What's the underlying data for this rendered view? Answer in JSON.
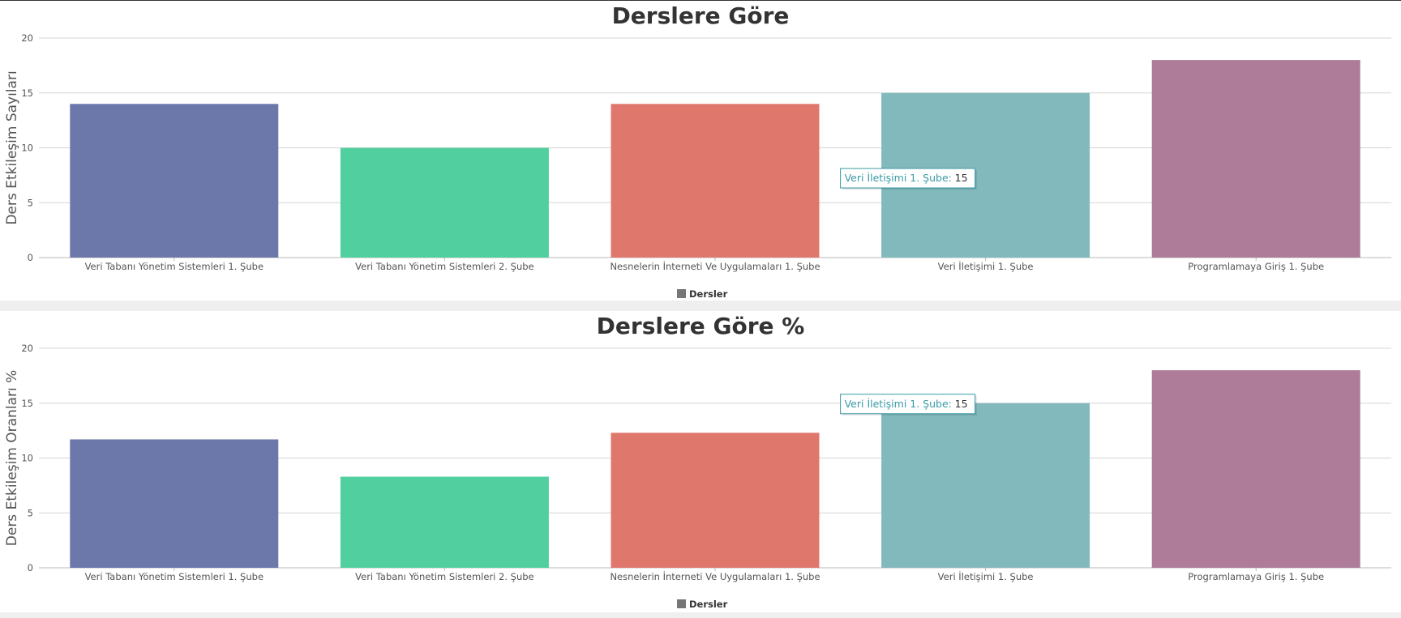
{
  "chart_data": [
    {
      "type": "bar",
      "title": "Derslere Göre",
      "ylabel": "Ders Etkileşim Sayıları",
      "xlabel": "",
      "categories": [
        "Veri Tabanı Yönetim Sistemleri 1. Şube",
        "Veri Tabanı Yönetim Sistemleri 2. Şube",
        "Nesnelerin İnterneti Ve Uygulamaları 1. Şube",
        "Veri İletişimi 1. Şube",
        "Programlamaya Giriş 1. Şube"
      ],
      "series": [
        {
          "name": "Dersler",
          "values": [
            14,
            10,
            14,
            15,
            18
          ]
        }
      ],
      "colors": [
        "#6c77aa",
        "#52cf9f",
        "#df776d",
        "#82b9bd",
        "#ae7c98"
      ],
      "ylim": [
        0,
        20
      ],
      "yticks": [
        "0",
        "5",
        "10",
        "15",
        "20"
      ],
      "grid": true,
      "legend_position": "bottom",
      "legend_color": "#777777",
      "tooltip": {
        "category": "Veri İletişimi 1. Şube",
        "label": "Veri İletişimi 1. Şube:",
        "value": "15",
        "color": "#3a9aa5"
      }
    },
    {
      "type": "bar",
      "title": "Derslere Göre %",
      "ylabel": "Ders Etkileşim Oranları %",
      "xlabel": "",
      "categories": [
        "Veri Tabanı Yönetim Sistemleri 1. Şube",
        "Veri Tabanı Yönetim Sistemleri 2. Şube",
        "Nesnelerin İnterneti Ve Uygulamaları 1. Şube",
        "Veri İletişimi 1. Şube",
        "Programlamaya Giriş 1. Şube"
      ],
      "series": [
        {
          "name": "Dersler",
          "values": [
            11.7,
            8.3,
            12.3,
            15,
            18
          ]
        }
      ],
      "colors": [
        "#6c77aa",
        "#52cf9f",
        "#df776d",
        "#82b9bd",
        "#ae7c98"
      ],
      "ylim": [
        0,
        20
      ],
      "yticks": [
        "0",
        "5",
        "10",
        "15",
        "20"
      ],
      "grid": true,
      "legend_position": "bottom",
      "legend_color": "#777777",
      "tooltip": {
        "category": "Veri İletişimi 1. Şube",
        "label": "Veri İletişimi 1. Şube:",
        "value": "15",
        "color": "#3a9aa5"
      }
    }
  ]
}
